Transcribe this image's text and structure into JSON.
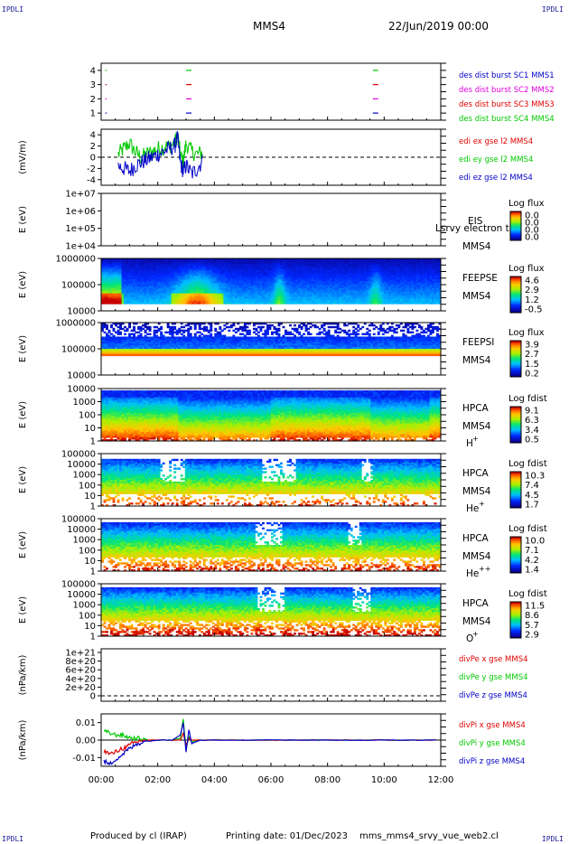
{
  "corners": {
    "tl": "IPDLI",
    "tr": "IPDLI",
    "bl": "IPDLI",
    "br": "IPDLI"
  },
  "header": {
    "spacecraft": "MMS4",
    "date": "22/Jun/2019 00:00"
  },
  "footer": {
    "produced_by": "Produced by cl (IRAP)",
    "printing_date": "Printing date: 01/Dec/2023",
    "filename": "mms_mms4_srvy_vue_web2.cl"
  },
  "colors": {
    "red": "#e00000",
    "green": "#00c800",
    "blue": "#0000c8",
    "magenta": "#e000e0",
    "dash": "#000000"
  },
  "chart_data": [
    {
      "id": "burst",
      "type": "scatter",
      "yticks": [
        "1",
        "2",
        "3",
        "4"
      ],
      "ylim": [
        0.5,
        4.5
      ],
      "xlim": [
        0,
        12
      ],
      "x_tick_labels": [
        "00:00",
        "02:00",
        "04:00",
        "06:00",
        "08:00",
        "10:00",
        "12:00"
      ],
      "series": [
        {
          "name": "des dist burst SC1 MMS1",
          "color": "#0000c8",
          "y": 1,
          "x": [
            0.15,
            3.0,
            9.6
          ]
        },
        {
          "name": "des dist burst SC2 MMS2",
          "color": "#e000e0",
          "y": 2,
          "x": [
            0.15,
            3.0,
            9.6
          ]
        },
        {
          "name": "des dist burst SC3 MMS3",
          "color": "#e00000",
          "y": 3,
          "x": [
            0.15,
            3.0,
            9.6
          ]
        },
        {
          "name": "des dist burst SC4 MMS4",
          "color": "#00c800",
          "y": 4,
          "x": [
            0.15,
            3.0,
            9.6
          ]
        }
      ]
    },
    {
      "id": "edi",
      "type": "line",
      "ylabel": "(mV/m)",
      "yticks": [
        "4",
        "2",
        "0",
        "-2",
        "-4"
      ],
      "ylim": [
        -5,
        5
      ],
      "series": [
        {
          "name": "edi ex gse l2 MMS4",
          "color": "#e00000"
        },
        {
          "name": "edi ey gse l2 MMS4",
          "color": "#00c800"
        },
        {
          "name": "edi ez gse l2 MMS4",
          "color": "#0000c8"
        }
      ],
      "x": [
        0.6,
        0.8,
        1.0,
        1.2,
        1.4,
        1.6,
        1.8,
        2.0,
        2.2,
        2.4,
        2.6,
        2.7,
        2.8,
        2.9,
        3.0,
        3.2,
        3.4,
        3.6
      ],
      "y_blue": [
        -1.5,
        -2.0,
        -2.5,
        -1.5,
        -1.0,
        -0.5,
        0.0,
        0.5,
        1.0,
        1.5,
        2.0,
        3.5,
        -1.0,
        -2.5,
        -1.5,
        -3.0,
        -2.0,
        -0.5
      ],
      "y_green": [
        0.5,
        1.5,
        2.5,
        1.0,
        0.0,
        0.5,
        1.0,
        1.5,
        1.8,
        2.0,
        2.5,
        4.0,
        0.5,
        -1.0,
        2.5,
        1.0,
        0.5,
        1.0
      ]
    },
    {
      "id": "eis",
      "type": "heatmap",
      "ylabel": "E (eV)",
      "yticks": [
        "1e+07",
        "1e+06",
        "1e+05",
        "1e+04"
      ],
      "instrument": [
        "EIS",
        "MMS4"
      ],
      "overlay": "Lsrvy electron to",
      "colorbar": {
        "title": "Log flux",
        "ticks": [
          "0.0",
          "0.0",
          "0.0",
          "0.0"
        ]
      }
    },
    {
      "id": "feepse",
      "type": "heatmap",
      "ylabel": "E (eV)",
      "yticks": [
        "1000000",
        "100000",
        "10000"
      ],
      "instrument": [
        "FEEPSE",
        "MMS4"
      ],
      "colorbar": {
        "title": "Log flux",
        "ticks": [
          "4.6",
          "2.9",
          "1.2",
          "-0.5"
        ]
      }
    },
    {
      "id": "feepsi",
      "type": "heatmap",
      "ylabel": "E (eV)",
      "yticks": [
        "1000000",
        "100000",
        "10000"
      ],
      "instrument": [
        "FEEPSI",
        "MMS4"
      ],
      "colorbar": {
        "title": "Log flux",
        "ticks": [
          "3.9",
          "2.7",
          "1.5",
          "0.2"
        ]
      }
    },
    {
      "id": "hpca_h",
      "type": "heatmap",
      "ylabel": "E (eV)",
      "yticks": [
        "10000",
        "1000",
        "100",
        "10",
        "1"
      ],
      "instrument": [
        "HPCA",
        "MMS4"
      ],
      "species": "H",
      "charge": "+",
      "colorbar": {
        "title": "Log fdist",
        "ticks": [
          "9.1",
          "6.3",
          "3.4",
          "0.5"
        ]
      }
    },
    {
      "id": "hpca_he",
      "type": "heatmap",
      "ylabel": "E (eV)",
      "yticks": [
        "100000",
        "10000",
        "1000",
        "100",
        "10",
        "1"
      ],
      "instrument": [
        "HPCA",
        "MMS4"
      ],
      "species": "He",
      "charge": "+",
      "colorbar": {
        "title": "Log fdist",
        "ticks": [
          "10.3",
          "7.4",
          "4.5",
          "1.7"
        ]
      }
    },
    {
      "id": "hpca_hepp",
      "type": "heatmap",
      "ylabel": "E (eV)",
      "yticks": [
        "100000",
        "10000",
        "1000",
        "100",
        "10",
        "1"
      ],
      "instrument": [
        "HPCA",
        "MMS4"
      ],
      "species": "He",
      "charge": "++",
      "colorbar": {
        "title": "Log fdist",
        "ticks": [
          "10.0",
          "7.1",
          "4.2",
          "1.4"
        ]
      }
    },
    {
      "id": "hpca_o",
      "type": "heatmap",
      "ylabel": "E (eV)",
      "yticks": [
        "100000",
        "10000",
        "1000",
        "100",
        "10",
        "1"
      ],
      "instrument": [
        "HPCA",
        "MMS4"
      ],
      "species": "O",
      "charge": "+",
      "colorbar": {
        "title": "Log fdist",
        "ticks": [
          "11.5",
          "8.6",
          "5.7",
          "2.9"
        ]
      }
    },
    {
      "id": "divpe",
      "type": "line",
      "ylabel": "(nPa/km)",
      "yticks": [
        "1e+21",
        "8e+20",
        "6e+20",
        "4e+20",
        "2e+20",
        "0"
      ],
      "ylim": [
        0,
        1e+21
      ],
      "series": [
        {
          "name": "divPe x gse MMS4",
          "color": "#e00000"
        },
        {
          "name": "divPe y gse MMS4",
          "color": "#00c800"
        },
        {
          "name": "divPe z gse MMS4",
          "color": "#0000c8"
        }
      ]
    },
    {
      "id": "divpi",
      "type": "line",
      "ylabel": "(nPa/km)",
      "yticks": [
        "0.01",
        "0.00",
        "-0.01"
      ],
      "ylim": [
        -0.015,
        0.015
      ],
      "series": [
        {
          "name": "divPi x gse MMS4",
          "color": "#e00000"
        },
        {
          "name": "divPi y gse MMS4",
          "color": "#00c800"
        },
        {
          "name": "divPi z gse MMS4",
          "color": "#0000c8"
        }
      ],
      "x": [
        0.1,
        0.3,
        0.5,
        0.7,
        0.9,
        1.1,
        1.3,
        1.5,
        2.0,
        2.5,
        2.8,
        2.9,
        3.0,
        3.1,
        3.2,
        3.5,
        4.0,
        5.0,
        6.0,
        7.0,
        8.0,
        9.0,
        10.0,
        11.0,
        12.0
      ],
      "y_red": [
        -0.006,
        -0.008,
        -0.007,
        -0.005,
        -0.004,
        -0.002,
        -0.001,
        0.0,
        0.0,
        0.0,
        0.0,
        0.004,
        -0.003,
        0.001,
        0.0,
        0.0,
        0.0,
        0.0,
        0.0,
        0.0,
        0.0,
        0.0,
        0.0,
        0.0,
        0.0
      ],
      "y_green": [
        0.005,
        0.004,
        0.003,
        0.003,
        0.002,
        0.001,
        0.001,
        0.0,
        0.0,
        0.0,
        0.001,
        0.012,
        -0.005,
        0.002,
        -0.001,
        0.0,
        0.0,
        0.0,
        0.0,
        0.0,
        0.0,
        0.0,
        0.0,
        0.0,
        0.0
      ],
      "y_blue": [
        -0.012,
        -0.014,
        -0.011,
        -0.009,
        -0.006,
        -0.004,
        -0.002,
        -0.001,
        0.0,
        0.0,
        0.003,
        0.01,
        -0.007,
        0.006,
        -0.002,
        0.0,
        0.0,
        0.0,
        0.0,
        0.0,
        0.0,
        0.0,
        0.0,
        0.0,
        0.0
      ]
    }
  ]
}
